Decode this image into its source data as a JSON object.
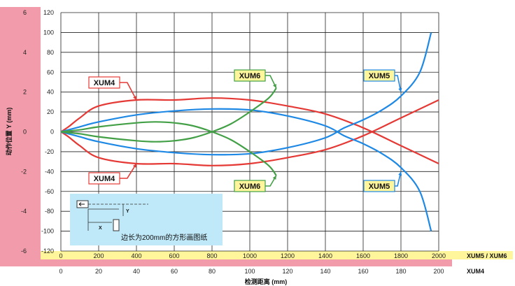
{
  "chart_data": {
    "type": "line",
    "ylabel": "动作位置 Y (mm)",
    "xlabel": "检测距离 (mm)",
    "ylim": [
      -120,
      120
    ],
    "y_ticks": [
      -120,
      -100,
      -80,
      -60,
      -40,
      -20,
      0,
      20,
      40,
      60,
      80,
      100,
      120
    ],
    "y_ticks_xum4": [
      -6,
      -4,
      -2,
      0,
      2,
      4,
      6
    ],
    "x_axis_xum56": {
      "label": "XUM5 / XUM6",
      "lim": [
        0,
        2000
      ],
      "ticks": [
        0,
        200,
        400,
        600,
        800,
        1000,
        1200,
        1400,
        1600,
        1800,
        2000
      ]
    },
    "x_axis_xum4": {
      "label": "XUM4",
      "lim": [
        0,
        200
      ],
      "ticks": [
        0,
        20,
        40,
        60,
        80,
        100,
        120,
        140,
        160,
        180,
        200
      ]
    },
    "grid": true,
    "colors": {
      "XUM4": "#e53935",
      "XUM5": "#1e88e5",
      "XUM6": "#43a047",
      "axis_band": "#f19bab",
      "label_band": "#fff59a",
      "inset_bg": "#bfe8f8"
    },
    "series": [
      {
        "name": "XUM4",
        "x": [
          0,
          40,
          100,
          200,
          400,
          600,
          800,
          1000,
          1200,
          1400,
          1600,
          1800,
          2000
        ],
        "y": [
          0,
          5,
          14,
          26,
          32,
          32,
          34,
          32,
          26,
          18,
          4,
          -14,
          -32
        ]
      },
      {
        "name": "XUM4",
        "x": [
          0,
          40,
          100,
          200,
          400,
          600,
          800,
          1000,
          1200,
          1400,
          1600,
          1800,
          2000
        ],
        "y": [
          0,
          -5,
          -14,
          -26,
          -32,
          -32,
          -34,
          -32,
          -26,
          -18,
          -4,
          14,
          32
        ]
      },
      {
        "name": "XUM5",
        "x": [
          0,
          100,
          200,
          400,
          600,
          800,
          1000,
          1200,
          1400,
          1500,
          1600,
          1700,
          1800,
          1900,
          1960
        ],
        "y": [
          0,
          5,
          10,
          17,
          21,
          23,
          22,
          16,
          6,
          -4,
          -12,
          -22,
          -36,
          -60,
          -100
        ]
      },
      {
        "name": "XUM5",
        "x": [
          0,
          100,
          200,
          400,
          600,
          800,
          1000,
          1200,
          1400,
          1500,
          1600,
          1700,
          1800,
          1900,
          1960
        ],
        "y": [
          0,
          -5,
          -10,
          -17,
          -21,
          -23,
          -22,
          -16,
          -6,
          4,
          12,
          22,
          36,
          60,
          100
        ]
      },
      {
        "name": "XUM6",
        "x": [
          0,
          100,
          200,
          400,
          500,
          600,
          700,
          800,
          900,
          1000,
          1100,
          1140
        ],
        "y": [
          0,
          2,
          5,
          9,
          10,
          9,
          6,
          0,
          -8,
          -20,
          -34,
          -44
        ]
      },
      {
        "name": "XUM6",
        "x": [
          0,
          100,
          200,
          400,
          500,
          600,
          700,
          800,
          900,
          1000,
          1100,
          1140
        ],
        "y": [
          0,
          -2,
          -5,
          -9,
          -10,
          -9,
          -6,
          0,
          8,
          20,
          34,
          44
        ]
      }
    ],
    "callouts": [
      {
        "text": "XUM4",
        "target": [
          400,
          32
        ]
      },
      {
        "text": "XUM4",
        "target": [
          400,
          -32
        ]
      },
      {
        "text": "XUM6",
        "target": [
          1140,
          44
        ]
      },
      {
        "text": "XUM6",
        "target": [
          1140,
          -44
        ]
      },
      {
        "text": "XUM5",
        "target": [
          1800,
          40
        ]
      },
      {
        "text": "XUM5",
        "target": [
          1800,
          -40
        ]
      }
    ],
    "inset": {
      "note": "边长为200mm的方形画图纸",
      "x_label": "X",
      "y_label": "Y"
    }
  }
}
